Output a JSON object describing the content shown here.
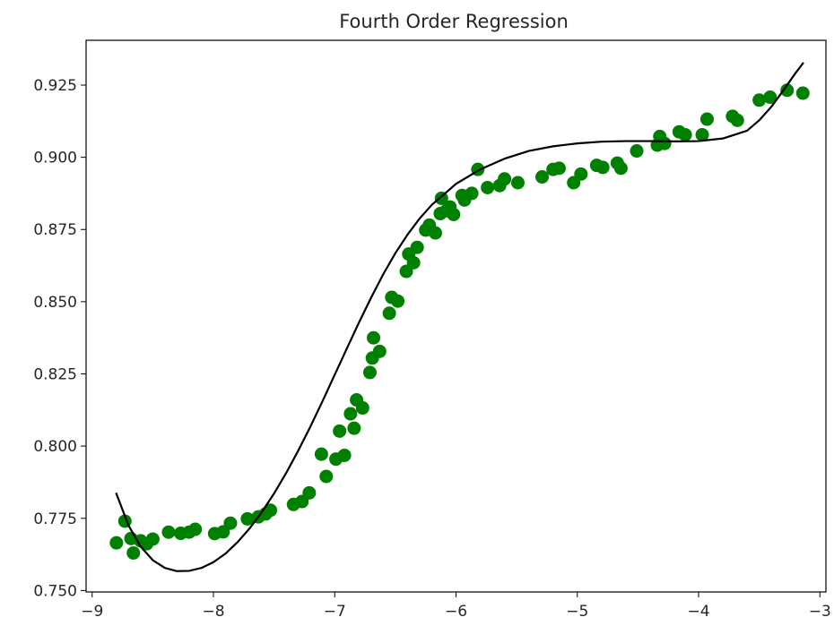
{
  "chart_data": {
    "type": "scatter",
    "title": "Fourth Order Regression",
    "xlabel": "",
    "ylabel": "",
    "xlim": [
      -9.05,
      -2.95
    ],
    "ylim": [
      0.7495,
      0.9405
    ],
    "xticks": [
      -9,
      -8,
      -7,
      -6,
      -5,
      -4,
      -3
    ],
    "xtick_labels": [
      "−9",
      "−8",
      "−7",
      "−6",
      "−5",
      "−4",
      "−3"
    ],
    "yticks": [
      0.75,
      0.775,
      0.8,
      0.825,
      0.85,
      0.875,
      0.9,
      0.925
    ],
    "ytick_labels": [
      "0.750",
      "0.775",
      "0.800",
      "0.825",
      "0.850",
      "0.875",
      "0.900",
      "0.925"
    ],
    "grid": false,
    "colors": {
      "points": "#008000",
      "line": "#000000",
      "axes": "#000000"
    },
    "series": [
      {
        "kind": "scatter",
        "points": [
          [
            -8.8,
            0.7665
          ],
          [
            -8.73,
            0.774
          ],
          [
            -8.68,
            0.768
          ],
          [
            -8.66,
            0.763
          ],
          [
            -8.6,
            0.7672
          ],
          [
            -8.55,
            0.7662
          ],
          [
            -8.5,
            0.7678
          ],
          [
            -8.37,
            0.7702
          ],
          [
            -8.27,
            0.7698
          ],
          [
            -8.2,
            0.7702
          ],
          [
            -8.15,
            0.7712
          ],
          [
            -7.99,
            0.7697
          ],
          [
            -7.92,
            0.7703
          ],
          [
            -7.86,
            0.7733
          ],
          [
            -7.72,
            0.7748
          ],
          [
            -7.63,
            0.7755
          ],
          [
            -7.57,
            0.7765
          ],
          [
            -7.53,
            0.7778
          ],
          [
            -7.34,
            0.7798
          ],
          [
            -7.27,
            0.7808
          ],
          [
            -7.21,
            0.7838
          ],
          [
            -7.11,
            0.7972
          ],
          [
            -7.07,
            0.7895
          ],
          [
            -6.99,
            0.7955
          ],
          [
            -6.96,
            0.8052
          ],
          [
            -6.92,
            0.7968
          ],
          [
            -6.87,
            0.8112
          ],
          [
            -6.84,
            0.8062
          ],
          [
            -6.82,
            0.816
          ],
          [
            -6.77,
            0.8132
          ],
          [
            -6.71,
            0.8255
          ],
          [
            -6.69,
            0.8305
          ],
          [
            -6.68,
            0.8375
          ],
          [
            -6.63,
            0.8328
          ],
          [
            -6.55,
            0.846
          ],
          [
            -6.53,
            0.8515
          ],
          [
            -6.48,
            0.8502
          ],
          [
            -6.41,
            0.8605
          ],
          [
            -6.39,
            0.8665
          ],
          [
            -6.35,
            0.8635
          ],
          [
            -6.32,
            0.8688
          ],
          [
            -6.25,
            0.8748
          ],
          [
            -6.22,
            0.8765
          ],
          [
            -6.17,
            0.8738
          ],
          [
            -6.13,
            0.8805
          ],
          [
            -6.12,
            0.8858
          ],
          [
            -6.08,
            0.8815
          ],
          [
            -6.05,
            0.8828
          ],
          [
            -6.02,
            0.8802
          ],
          [
            -5.95,
            0.8868
          ],
          [
            -5.93,
            0.8852
          ],
          [
            -5.87,
            0.8875
          ],
          [
            -5.82,
            0.8958
          ],
          [
            -5.74,
            0.8895
          ],
          [
            -5.64,
            0.8902
          ],
          [
            -5.6,
            0.8925
          ],
          [
            -5.49,
            0.8912
          ],
          [
            -5.29,
            0.8932
          ],
          [
            -5.2,
            0.8958
          ],
          [
            -5.15,
            0.8962
          ],
          [
            -5.03,
            0.8912
          ],
          [
            -4.97,
            0.8942
          ],
          [
            -4.84,
            0.8972
          ],
          [
            -4.79,
            0.8965
          ],
          [
            -4.67,
            0.898
          ],
          [
            -4.64,
            0.8962
          ],
          [
            -4.51,
            0.9022
          ],
          [
            -4.34,
            0.9042
          ],
          [
            -4.32,
            0.9072
          ],
          [
            -4.28,
            0.9048
          ],
          [
            -4.16,
            0.9088
          ],
          [
            -4.11,
            0.9078
          ],
          [
            -3.97,
            0.9078
          ],
          [
            -3.93,
            0.9132
          ],
          [
            -3.72,
            0.9142
          ],
          [
            -3.68,
            0.9128
          ],
          [
            -3.5,
            0.9198
          ],
          [
            -3.41,
            0.9208
          ],
          [
            -3.27,
            0.9232
          ],
          [
            -3.14,
            0.9222
          ]
        ]
      },
      {
        "kind": "line",
        "points": [
          [
            -8.8,
            0.7835
          ],
          [
            -8.7,
            0.7725
          ],
          [
            -8.6,
            0.7652
          ],
          [
            -8.5,
            0.7605
          ],
          [
            -8.4,
            0.7578
          ],
          [
            -8.3,
            0.7567
          ],
          [
            -8.2,
            0.7568
          ],
          [
            -8.1,
            0.7578
          ],
          [
            -8.0,
            0.7598
          ],
          [
            -7.9,
            0.7628
          ],
          [
            -7.8,
            0.7668
          ],
          [
            -7.7,
            0.7716
          ],
          [
            -7.6,
            0.7772
          ],
          [
            -7.5,
            0.7836
          ],
          [
            -7.4,
            0.7907
          ],
          [
            -7.3,
            0.7985
          ],
          [
            -7.2,
            0.8068
          ],
          [
            -7.1,
            0.8156
          ],
          [
            -7.0,
            0.8247
          ],
          [
            -6.9,
            0.8338
          ],
          [
            -6.8,
            0.8428
          ],
          [
            -6.7,
            0.8514
          ],
          [
            -6.6,
            0.8595
          ],
          [
            -6.5,
            0.8668
          ],
          [
            -6.4,
            0.8732
          ],
          [
            -6.3,
            0.8788
          ],
          [
            -6.2,
            0.8835
          ],
          [
            -6.0,
            0.8908
          ],
          [
            -5.8,
            0.8958
          ],
          [
            -5.6,
            0.8995
          ],
          [
            -5.4,
            0.9022
          ],
          [
            -5.2,
            0.9038
          ],
          [
            -5.0,
            0.9048
          ],
          [
            -4.8,
            0.9054
          ],
          [
            -4.6,
            0.9056
          ],
          [
            -4.4,
            0.9056
          ],
          [
            -4.2,
            0.9055
          ],
          [
            -4.0,
            0.9056
          ],
          [
            -3.8,
            0.9065
          ],
          [
            -3.6,
            0.9092
          ],
          [
            -3.5,
            0.9128
          ],
          [
            -3.4,
            0.9175
          ],
          [
            -3.3,
            0.9232
          ],
          [
            -3.2,
            0.9292
          ],
          [
            -3.14,
            0.9325
          ]
        ]
      }
    ]
  }
}
